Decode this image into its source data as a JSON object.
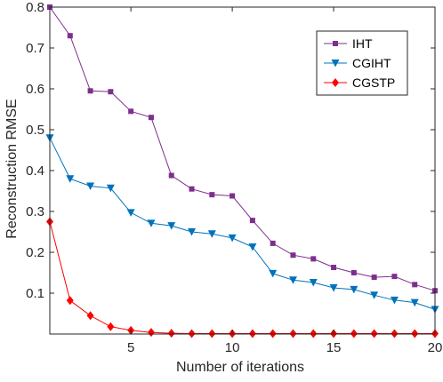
{
  "chart_data": {
    "type": "line",
    "title": "",
    "xlabel": "Number of iterations",
    "ylabel": "Reconstruction RMSE",
    "xlim": [
      1,
      20
    ],
    "ylim": [
      0,
      0.8
    ],
    "xticks": [
      5,
      10,
      15,
      20
    ],
    "yticks": [
      0.1,
      0.2,
      0.3,
      0.4,
      0.5,
      0.6,
      0.7,
      0.8
    ],
    "grid": false,
    "legend_position": "top-right",
    "x": [
      1,
      2,
      3,
      4,
      5,
      6,
      7,
      8,
      9,
      10,
      11,
      12,
      13,
      14,
      15,
      16,
      17,
      18,
      19,
      20
    ],
    "series": [
      {
        "name": "IHT",
        "color": "#7e2f8e",
        "marker": "square",
        "values": [
          0.8,
          0.73,
          0.595,
          0.593,
          0.545,
          0.53,
          0.388,
          0.355,
          0.341,
          0.338,
          0.278,
          0.222,
          0.193,
          0.184,
          0.163,
          0.15,
          0.139,
          0.141,
          0.121,
          0.106
        ]
      },
      {
        "name": "CGIHT",
        "color": "#0072bd",
        "marker": "triangle-down",
        "values": [
          0.48,
          0.38,
          0.362,
          0.357,
          0.297,
          0.271,
          0.265,
          0.25,
          0.245,
          0.235,
          0.213,
          0.148,
          0.132,
          0.126,
          0.113,
          0.109,
          0.095,
          0.083,
          0.077,
          0.06
        ]
      },
      {
        "name": "CGSTP",
        "color": "#ff0000",
        "marker": "diamond",
        "values": [
          0.275,
          0.082,
          0.045,
          0.018,
          0.009,
          0.004,
          0.002,
          0.001,
          0.001,
          0.001,
          0.001,
          0.001,
          0.001,
          0.001,
          0.001,
          0.001,
          0.001,
          0.001,
          0.001,
          0.001
        ]
      }
    ]
  }
}
